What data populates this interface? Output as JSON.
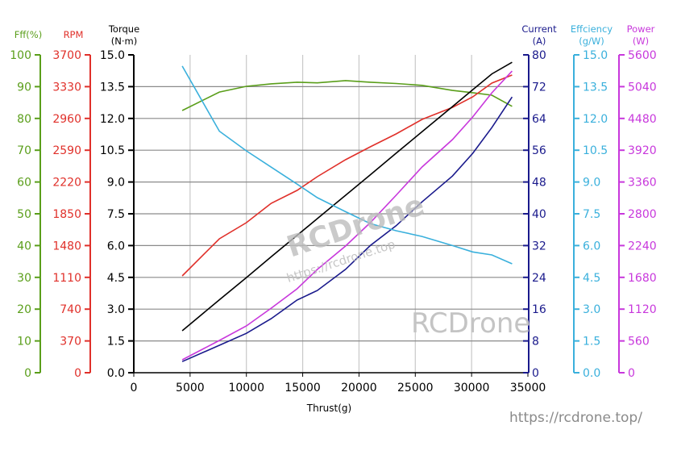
{
  "chart_data": {
    "type": "line",
    "xlabel": "Thrust(g)",
    "xlim": [
      0,
      35000
    ],
    "xticks": [
      0,
      5000,
      10000,
      15000,
      20000,
      25000,
      30000,
      35000
    ],
    "grid": true,
    "x": [
      4300,
      7600,
      10000,
      12200,
      14500,
      16300,
      18800,
      21000,
      23300,
      25600,
      28300,
      30100,
      31800,
      33600
    ],
    "axes": [
      {
        "id": "fff",
        "label": [
          "Fff(%)"
        ],
        "color": "#5a9e1a",
        "ylim": [
          0,
          100
        ],
        "ticks": [
          "0",
          "10",
          "20",
          "30",
          "40",
          "50",
          "60",
          "70",
          "80",
          "90",
          "100"
        ]
      },
      {
        "id": "rpm",
        "label": [
          "RPM"
        ],
        "color": "#e0302a",
        "ylim": [
          0,
          3700
        ],
        "ticks": [
          "0",
          "370",
          "740",
          "1110",
          "1480",
          "1850",
          "2220",
          "2590",
          "2960",
          "3330",
          "3700"
        ]
      },
      {
        "id": "torque",
        "label": [
          "Torque",
          "(N·m)"
        ],
        "color": "#000000",
        "ylim": [
          0,
          15
        ],
        "ticks": [
          "0.0",
          "1.5",
          "3.0",
          "4.5",
          "6.0",
          "7.5",
          "9.0",
          "10.5",
          "12.0",
          "13.5",
          "15.0"
        ]
      },
      {
        "id": "current",
        "label": [
          "Current",
          "(A)"
        ],
        "color": "#1a1a8c",
        "ylim": [
          0,
          80
        ],
        "ticks": [
          "0",
          "8",
          "16",
          "24",
          "32",
          "40",
          "48",
          "56",
          "64",
          "72",
          "80"
        ]
      },
      {
        "id": "efficiency",
        "label": [
          "Effciency",
          "(g/W)"
        ],
        "color": "#3ab0dc",
        "ylim": [
          0,
          15
        ],
        "ticks": [
          "0.0",
          "1.5",
          "3.0",
          "4.5",
          "6.0",
          "7.5",
          "9.0",
          "10.5",
          "12.0",
          "13.5",
          "15.0"
        ]
      },
      {
        "id": "power",
        "label": [
          "Power",
          "(W)"
        ],
        "color": "#c838dc",
        "ylim": [
          0,
          5600
        ],
        "ticks": [
          "0",
          "560",
          "1120",
          "1680",
          "2240",
          "2800",
          "3360",
          "3920",
          "4480",
          "5040",
          "5600"
        ]
      }
    ],
    "series": [
      {
        "axis": "fff",
        "values": [
          82.5,
          88.3,
          90.1,
          90.9,
          91.4,
          91.2,
          91.9,
          91.4,
          91.0,
          90.4,
          88.8,
          88.1,
          87.3,
          83.8
        ]
      },
      {
        "axis": "rpm",
        "values": [
          1127,
          1559,
          1747,
          1972,
          2122,
          2282,
          2479,
          2629,
          2780,
          2949,
          3089,
          3211,
          3371,
          3465
        ]
      },
      {
        "axis": "torque",
        "values": [
          1.98,
          3.44,
          4.49,
          5.47,
          6.48,
          7.27,
          8.37,
          9.34,
          10.36,
          11.37,
          12.56,
          13.35,
          14.1,
          14.65
        ]
      },
      {
        "axis": "current",
        "values": [
          2.8,
          6.9,
          9.9,
          13.6,
          18.3,
          20.7,
          26.0,
          32.0,
          37.0,
          43.0,
          49.5,
          55.2,
          61.7,
          69.4
        ]
      },
      {
        "axis": "efficiency",
        "values": [
          14.47,
          11.4,
          10.47,
          9.7,
          8.9,
          8.26,
          7.6,
          7.04,
          6.7,
          6.43,
          6.0,
          5.7,
          5.56,
          5.14
        ]
      },
      {
        "axis": "power",
        "values": [
          227,
          568,
          824,
          1137,
          1478,
          1819,
          2231,
          2644,
          3127,
          3624,
          4107,
          4505,
          4932,
          5315
        ]
      }
    ]
  },
  "watermarks": {
    "center_logo": "RCDrone",
    "center_url": "https://rcdrone.top",
    "right_logo": "RCDrone",
    "footer_url": "https://rcdrone.top/"
  }
}
